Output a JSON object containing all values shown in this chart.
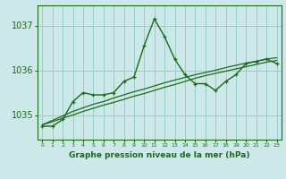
{
  "xlabel": "Graphe pression niveau de la mer (hPa)",
  "hours": [
    0,
    1,
    2,
    3,
    4,
    5,
    6,
    7,
    8,
    9,
    10,
    11,
    12,
    13,
    14,
    15,
    16,
    17,
    18,
    19,
    20,
    21,
    22,
    23
  ],
  "pressure_main": [
    1034.75,
    1034.75,
    1034.9,
    1035.3,
    1035.5,
    1035.45,
    1035.45,
    1035.5,
    1035.75,
    1035.85,
    1036.55,
    1037.15,
    1036.75,
    1036.25,
    1035.9,
    1035.7,
    1035.7,
    1035.55,
    1035.75,
    1035.9,
    1036.15,
    1036.2,
    1036.25,
    1036.15
  ],
  "pressure_trend1": [
    1034.78,
    1034.85,
    1034.93,
    1035.0,
    1035.08,
    1035.15,
    1035.22,
    1035.28,
    1035.35,
    1035.42,
    1035.48,
    1035.55,
    1035.62,
    1035.68,
    1035.75,
    1035.82,
    1035.88,
    1035.93,
    1035.98,
    1036.03,
    1036.08,
    1036.13,
    1036.18,
    1036.22
  ],
  "pressure_trend2": [
    1034.78,
    1034.88,
    1034.98,
    1035.08,
    1035.16,
    1035.24,
    1035.3,
    1035.38,
    1035.45,
    1035.52,
    1035.58,
    1035.65,
    1035.72,
    1035.78,
    1035.84,
    1035.9,
    1035.95,
    1036.0,
    1036.06,
    1036.11,
    1036.16,
    1036.2,
    1036.25,
    1036.28
  ],
  "line_color": "#1a6b1a",
  "bg_color": "#cce8e8",
  "grid_color": "#99cccc",
  "ylim_min": 1034.45,
  "ylim_max": 1037.45,
  "yticks": [
    1035,
    1036,
    1037
  ],
  "xlim_min": -0.5,
  "xlim_max": 23.5
}
